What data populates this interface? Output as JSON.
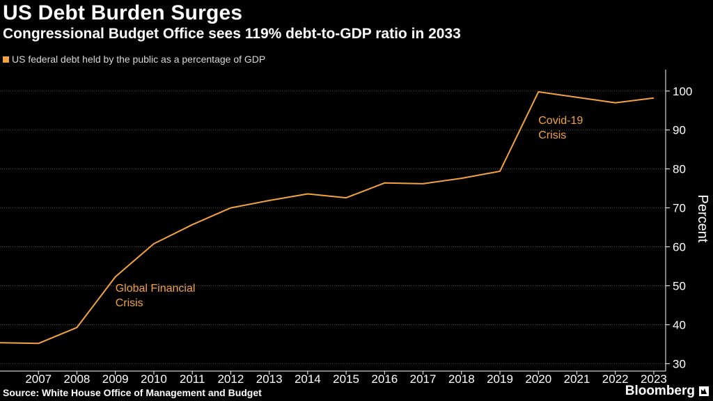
{
  "chart_data": {
    "type": "line",
    "title": "US Debt Burden Surges",
    "subtitle": "Congressional Budget Office sees 119% debt-to-GDP ratio in 2033",
    "legend": "US federal debt held by the public as a percentage of GDP",
    "x": [
      2006,
      2007,
      2008,
      2009,
      2010,
      2011,
      2012,
      2013,
      2014,
      2015,
      2016,
      2017,
      2018,
      2019,
      2020,
      2021,
      2022,
      2023
    ],
    "x_tick_labels": [
      "2007",
      "2008",
      "2009",
      "2010",
      "2011",
      "2012",
      "2013",
      "2014",
      "2015",
      "2016",
      "2017",
      "2018",
      "2019",
      "2020",
      "2021",
      "2022",
      "2023"
    ],
    "series": [
      {
        "name": "US federal debt held by the public as a percentage of GDP",
        "color": "#f4a340",
        "values": [
          35.4,
          35.2,
          39.3,
          52.3,
          60.8,
          65.7,
          70.0,
          71.9,
          73.6,
          72.6,
          76.4,
          76.2,
          77.6,
          79.4,
          99.8,
          98.4,
          97.0,
          98.2
        ]
      }
    ],
    "xlim": [
      2006,
      2023.2
    ],
    "ylim": [
      29,
      105.5
    ],
    "y_ticks": [
      30,
      40,
      50,
      60,
      70,
      80,
      90,
      100
    ],
    "ylabel": "Percent",
    "xlabel": "",
    "annotations": [
      {
        "lines": [
          "Global Financial",
          "Crisis"
        ],
        "x": 2009,
        "y": 48.5
      },
      {
        "lines": [
          "Covid-19",
          "Crisis"
        ],
        "x": 2020,
        "y": 91.6
      }
    ]
  },
  "source": "Source: White House Office of Management and Budget",
  "brand": "Bloomberg"
}
